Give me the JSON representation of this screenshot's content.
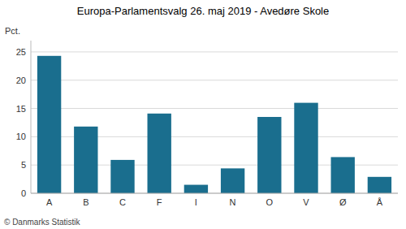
{
  "chart_data": {
    "type": "bar",
    "title": "Europa-Parlamentsvalg 26. maj 2019 - Avedøre Skole",
    "ylabel": "Pct.",
    "categories": [
      "A",
      "B",
      "C",
      "F",
      "I",
      "N",
      "O",
      "V",
      "Ø",
      "Å"
    ],
    "values": [
      24.3,
      11.8,
      5.9,
      14.1,
      1.5,
      4.4,
      13.5,
      16.0,
      6.4,
      2.9
    ],
    "color": "#1a6e8e",
    "ylim": [
      0,
      27
    ],
    "yticks": [
      0,
      5,
      10,
      15,
      20,
      25
    ],
    "grid": true,
    "annotations": [
      "© Danmarks Statistik"
    ]
  }
}
